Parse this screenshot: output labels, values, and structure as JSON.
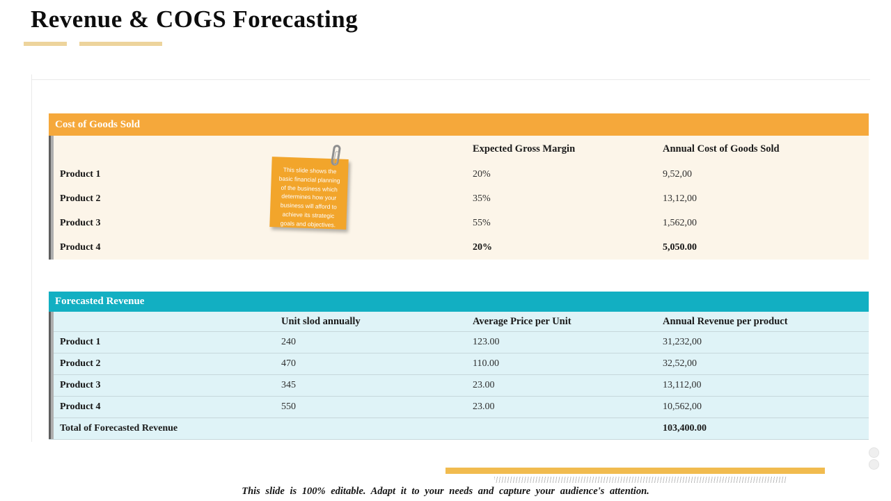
{
  "title": "Revenue & COGS Forecasting",
  "cogs": {
    "header": "Cost of Goods Sold",
    "col_margin": "Expected Gross Margin",
    "col_cost": "Annual Cost of Goods Sold",
    "rows": [
      {
        "label": "Product 1",
        "margin": "20%",
        "cost": "9,52,00"
      },
      {
        "label": "Product 2",
        "margin": "35%",
        "cost": "13,12,00"
      },
      {
        "label": "Product 3",
        "margin": "55%",
        "cost": "1,562,00"
      },
      {
        "label": "Product 4",
        "margin": "20%",
        "cost": "5,050.00"
      }
    ]
  },
  "revenue": {
    "header": "Forecasted Revenue",
    "col_unit": "Unit slod annually",
    "col_price": "Average Price per Unit",
    "col_revenue": "Annual Revenue per product",
    "rows": [
      {
        "label": "Product 1",
        "unit": "240",
        "price": "123.00",
        "revenue": "31,232,00"
      },
      {
        "label": "Product 2",
        "unit": "470",
        "price": "110.00",
        "revenue": "32,52,00"
      },
      {
        "label": "Product 3",
        "unit": "345",
        "price": "23.00",
        "revenue": "13,112,00"
      },
      {
        "label": "Product 4",
        "unit": "550",
        "price": "23.00",
        "revenue": "10,562,00"
      }
    ],
    "total_label": "Total of Forecasted Revenue",
    "total_value": "103,400.00"
  },
  "note": {
    "text": "This slide shows the basic financial planning of the business which determines how your business will afford to achieve its strategic goals and objectives."
  },
  "footer": "This slide is 100% editable.  Adapt it to your needs and capture your audience's attention.",
  "colors": {
    "cogs_header": "#F5A83B",
    "cogs_body": "#FCF5E9",
    "revenue_header": "#12AFC2",
    "revenue_body": "#DFF3F7",
    "accent_amber": "#F1BB4F",
    "underline": "#EDD49C",
    "note": "#F2A52B"
  }
}
